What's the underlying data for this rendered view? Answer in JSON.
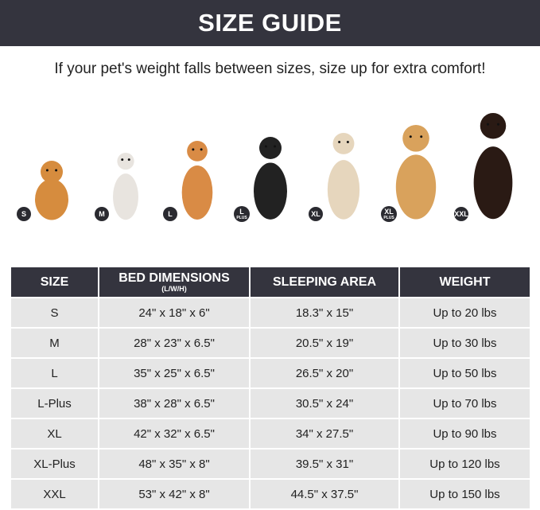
{
  "title": "SIZE GUIDE",
  "subtitle": "If your pet's weight falls between sizes, size up for extra comfort!",
  "badges": [
    {
      "label": "S",
      "sub": ""
    },
    {
      "label": "M",
      "sub": ""
    },
    {
      "label": "L",
      "sub": ""
    },
    {
      "label": "L",
      "sub": "PLUS"
    },
    {
      "label": "XL",
      "sub": ""
    },
    {
      "label": "XL",
      "sub": "PLUS"
    },
    {
      "label": "XXL",
      "sub": ""
    }
  ],
  "dogs": [
    {
      "name": "pomeranian",
      "color": "#d68c3e"
    },
    {
      "name": "french-bulldog",
      "color": "#e8e4df"
    },
    {
      "name": "shiba-inu",
      "color": "#d98b45"
    },
    {
      "name": "border-collie",
      "color": "#222222"
    },
    {
      "name": "labrador",
      "color": "#e6d6bd"
    },
    {
      "name": "golden-retriever",
      "color": "#d9a25c"
    },
    {
      "name": "doberman",
      "color": "#2a1a14"
    }
  ],
  "table": {
    "headers": [
      "SIZE",
      "BED DIMENSIONS",
      "SLEEPING AREA",
      "WEIGHT"
    ],
    "header_note": "(L/W/H)",
    "rows": [
      [
        "S",
        "24\" x 18\" x 6\"",
        "18.3\" x 15\"",
        "Up to 20 lbs"
      ],
      [
        "M",
        "28\" x 23\" x 6.5\"",
        "20.5\" x 19\"",
        "Up to 30 lbs"
      ],
      [
        "L",
        "35\" x 25\" x 6.5\"",
        "26.5\" x 20\"",
        "Up to 50 lbs"
      ],
      [
        "L-Plus",
        "38\" x 28\" x 6.5\"",
        "30.5\" x 24\"",
        "Up to 70 lbs"
      ],
      [
        "XL",
        "42\" x 32\" x 6.5\"",
        "34\" x 27.5\"",
        "Up to 90 lbs"
      ],
      [
        "XL-Plus",
        "48\" x 35\" x 8\"",
        "39.5\" x 31\"",
        "Up to 120 lbs"
      ],
      [
        "XXL",
        "53\" x 42\" x 8\"",
        "44.5\" x 37.5\"",
        "Up to 150 lbs"
      ]
    ]
  }
}
